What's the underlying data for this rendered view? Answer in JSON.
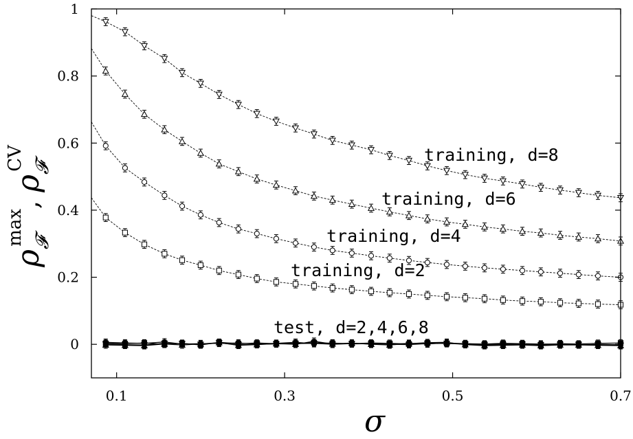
{
  "chart_data": {
    "type": "line",
    "xlabel": "σ",
    "ylabel": "ρ_F^max, ρ_F^CV",
    "xlim": [
      0.07,
      0.7
    ],
    "ylim": [
      -0.1,
      1.0
    ],
    "x_ticks": [
      "0.1",
      "0.3",
      "0.5",
      "0.7"
    ],
    "y_ticks": [
      "0",
      "0.2",
      "0.4",
      "0.6",
      "0.8",
      "1"
    ],
    "grid": false,
    "annotations": [
      "training, d=8",
      "training, d=6",
      "training, d=4",
      "training, d=2",
      "test, d=2,4,6,8"
    ],
    "x": [
      0.087,
      0.11,
      0.133,
      0.157,
      0.178,
      0.2,
      0.222,
      0.245,
      0.267,
      0.29,
      0.313,
      0.335,
      0.357,
      0.38,
      0.403,
      0.425,
      0.448,
      0.47,
      0.493,
      0.515,
      0.538,
      0.56,
      0.583,
      0.605,
      0.628,
      0.65,
      0.673,
      0.7
    ],
    "series": [
      {
        "label": "training, d=8",
        "marker": "triangle-down",
        "fit_start": [
          0.07,
          0.98
        ],
        "values": [
          0.962,
          0.932,
          0.89,
          0.852,
          0.81,
          0.778,
          0.745,
          0.715,
          0.688,
          0.665,
          0.645,
          0.627,
          0.608,
          0.594,
          0.58,
          0.563,
          0.548,
          0.532,
          0.518,
          0.506,
          0.495,
          0.487,
          0.478,
          0.468,
          0.46,
          0.452,
          0.444,
          0.437
        ]
      },
      {
        "label": "training, d=6",
        "marker": "triangle-up",
        "fit_start": [
          0.07,
          0.882
        ],
        "values": [
          0.815,
          0.746,
          0.686,
          0.64,
          0.605,
          0.57,
          0.538,
          0.515,
          0.493,
          0.475,
          0.458,
          0.442,
          0.43,
          0.418,
          0.406,
          0.395,
          0.384,
          0.374,
          0.365,
          0.358,
          0.35,
          0.344,
          0.337,
          0.332,
          0.325,
          0.32,
          0.315,
          0.308
        ]
      },
      {
        "label": "training, d=4",
        "marker": "circle",
        "fit_start": [
          0.07,
          0.663
        ],
        "values": [
          0.592,
          0.526,
          0.484,
          0.444,
          0.412,
          0.386,
          0.363,
          0.344,
          0.33,
          0.315,
          0.302,
          0.29,
          0.28,
          0.272,
          0.264,
          0.257,
          0.25,
          0.244,
          0.238,
          0.233,
          0.228,
          0.224,
          0.22,
          0.216,
          0.212,
          0.208,
          0.204,
          0.2
        ]
      },
      {
        "label": "training, d=2",
        "marker": "square",
        "fit_start": [
          0.07,
          0.437
        ],
        "values": [
          0.378,
          0.333,
          0.298,
          0.27,
          0.251,
          0.236,
          0.22,
          0.208,
          0.196,
          0.186,
          0.18,
          0.174,
          0.168,
          0.163,
          0.158,
          0.154,
          0.15,
          0.146,
          0.142,
          0.139,
          0.136,
          0.132,
          0.129,
          0.127,
          0.124,
          0.122,
          0.12,
          0.118
        ]
      },
      {
        "label": "test, d=2",
        "marker": "filled-square",
        "values": [
          0.003,
          0.002,
          0.004,
          0.0,
          0.003,
          -0.002,
          0.006,
          0.002,
          0.004,
          0.002,
          0.003,
          0.005,
          0.003,
          0.002,
          0.004,
          0.003,
          0.001,
          0.004,
          0.002,
          0.002,
          0.001,
          0.003,
          0.002,
          -0.001,
          0.002,
          0.001,
          0.003,
          0.004
        ]
      },
      {
        "label": "test, d=4",
        "marker": "filled-circle",
        "values": [
          0.006,
          0.004,
          0.003,
          0.007,
          0.001,
          0.002,
          0.003,
          0.004,
          0.001,
          0.003,
          0.006,
          0.002,
          0.004,
          0.001,
          0.002,
          0.0,
          0.003,
          0.001,
          0.004,
          0.002,
          0.0,
          0.001,
          0.002,
          0.001,
          0.001,
          -0.002,
          0.0,
          -0.001
        ]
      },
      {
        "label": "test, d=6",
        "marker": "filled-triangle-up",
        "values": [
          -0.002,
          -0.003,
          -0.004,
          0.001,
          -0.002,
          0.001,
          0.005,
          -0.003,
          -0.001,
          0.002,
          0.0,
          0.009,
          0.001,
          0.004,
          0.0,
          -0.002,
          0.002,
          0.005,
          0.006,
          -0.001,
          -0.004,
          -0.003,
          -0.002,
          -0.004,
          -0.002,
          -0.002,
          -0.003,
          -0.004
        ]
      },
      {
        "label": "test, d=8",
        "marker": "filled-triangle-down",
        "values": [
          0.001,
          -0.001,
          -0.002,
          0.003,
          0.002,
          0.0,
          0.004,
          -0.001,
          0.0,
          0.001,
          0.002,
          0.003,
          0.0,
          0.002,
          0.001,
          0.0,
          -0.001,
          0.002,
          0.003,
          0.0,
          -0.002,
          -0.001,
          0.0,
          -0.002,
          -0.001,
          -0.001,
          -0.002,
          -0.003
        ]
      }
    ]
  }
}
